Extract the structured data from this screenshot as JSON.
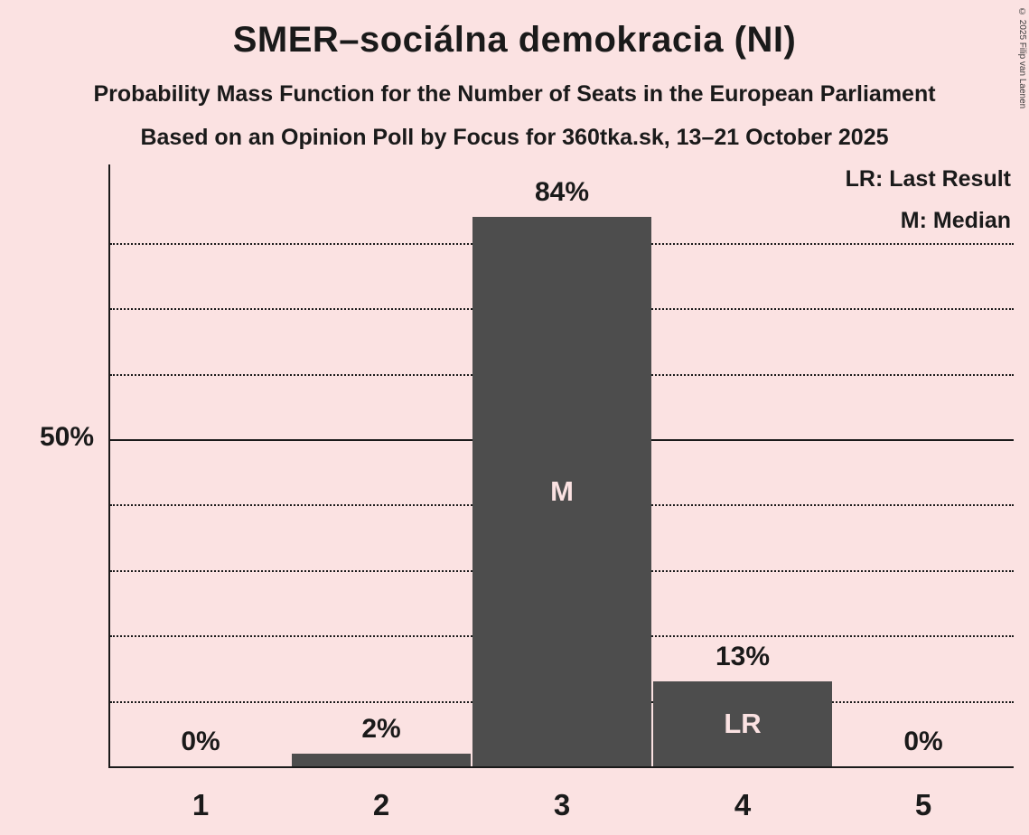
{
  "title": "SMER–sociálna demokracia (NI)",
  "subtitle1": "Probability Mass Function for the Number of Seats in the European Parliament",
  "subtitle2": "Based on an Opinion Poll by Focus for 360tka.sk, 13–21 October 2025",
  "legend": {
    "lr": "LR: Last Result",
    "m": "M: Median"
  },
  "y_axis_label": "50%",
  "copyright": "© 2025 Filip van Laenen",
  "chart_data": {
    "type": "bar",
    "title": "SMER–sociálna demokracia (NI)",
    "categories": [
      "1",
      "2",
      "3",
      "4",
      "5"
    ],
    "values": [
      0,
      2,
      84,
      13,
      0
    ],
    "value_labels": [
      "0%",
      "2%",
      "84%",
      "13%",
      "0%"
    ],
    "bar_annotations": [
      "",
      "",
      "M",
      "LR",
      ""
    ],
    "xlabel": "",
    "ylabel": "",
    "ylim": [
      0,
      92
    ],
    "solid_line_pct": 50,
    "gridlines_pct": [
      10,
      20,
      30,
      40,
      60,
      70,
      80
    ],
    "legend_position": "top-right",
    "colors": {
      "background": "#fbe2e2",
      "bar": "#4d4d4d",
      "text": "#1a1a1a",
      "annotation": "#fbe2e2"
    }
  }
}
